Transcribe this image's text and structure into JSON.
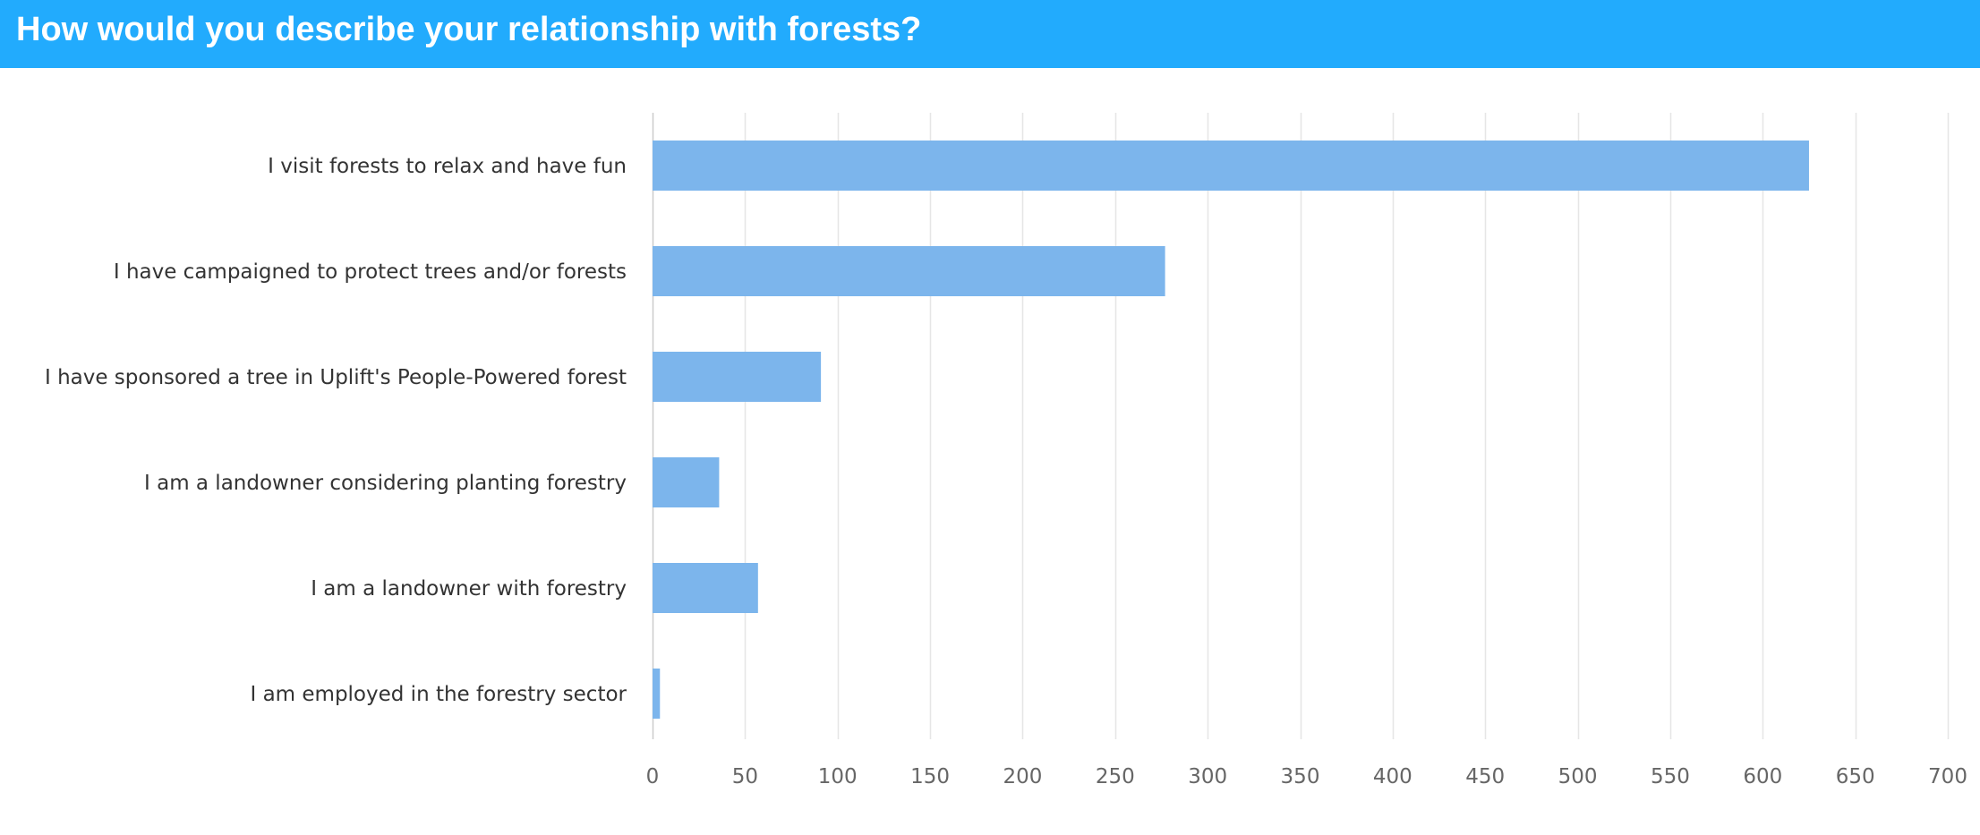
{
  "header": {
    "title": "How would you describe your relationship with forests?"
  },
  "colors": {
    "header_bg": "#22abfd",
    "bar": "#7cb5ec",
    "grid": "#e6e6e6",
    "label": "#333333",
    "tick": "#666666"
  },
  "chart_data": {
    "type": "bar",
    "orientation": "horizontal",
    "title": "How would you describe your relationship with forests?",
    "categories": [
      "I visit forests to relax and have fun",
      "I have campaigned to protect trees and/or forests",
      "I have sponsored a tree in Uplift's People-Powered forest",
      "I am a landowner considering planting forestry",
      "I am a landowner with forestry",
      "I am employed in the forestry sector"
    ],
    "values": [
      625,
      277,
      91,
      36,
      57,
      4
    ],
    "xlim": [
      0,
      700
    ],
    "xticks": [
      0,
      50,
      100,
      150,
      200,
      250,
      300,
      350,
      400,
      450,
      500,
      550,
      600,
      650,
      700
    ],
    "grid": true,
    "legend": "none"
  }
}
